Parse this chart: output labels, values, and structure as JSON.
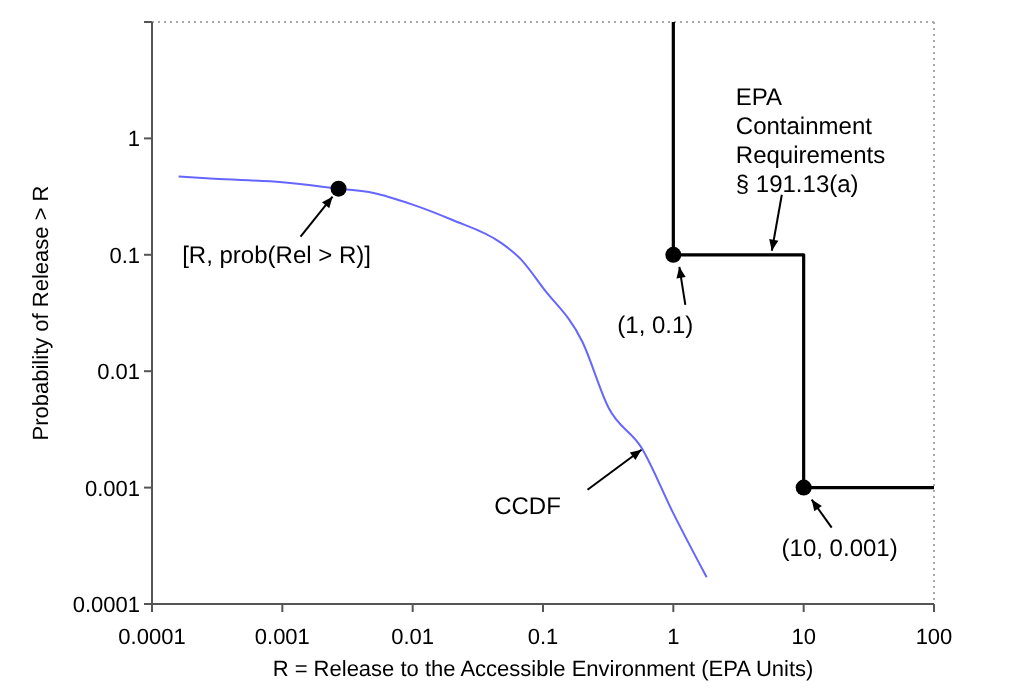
{
  "chart_data": {
    "type": "line",
    "xlabel": "R = Release to the Accessible Environment (EPA Units)",
    "ylabel": "Probability of Release > R",
    "log": "xy",
    "xlim": [
      0.0001,
      100
    ],
    "xticks": [
      0.0001,
      0.001,
      0.01,
      0.1,
      1,
      10,
      100
    ],
    "ylim": [
      0.0001,
      10
    ],
    "yticks": [
      0.0001,
      0.001,
      0.01,
      0.1,
      1,
      {
        "value": 10,
        "label": null
      }
    ],
    "series": [
      {
        "type": "line",
        "color": "#6666ff",
        "x": [
          0.00016,
          0.0003,
          0.001,
          0.0027,
          0.005,
          0.01,
          0.02,
          0.048,
          0.068,
          0.1,
          0.2,
          0.32,
          0.57,
          1,
          1.8
        ],
        "values": [
          0.47,
          0.45,
          0.42,
          0.37,
          0.34,
          0.27,
          0.2,
          0.126,
          0.091,
          0.052,
          0.018,
          0.0048,
          0.0022,
          0.0006,
          0.00017
        ]
      },
      {
        "type": "line",
        "color": "#000000",
        "x": [
          1,
          1,
          10,
          10,
          100
        ],
        "values": [
          10,
          0.1,
          0.1,
          0.001,
          0.001
        ]
      },
      {
        "type": "scatter",
        "color": "#000000",
        "marker": "circle",
        "x": [
          0.0027,
          1,
          10
        ],
        "values": [
          0.37,
          0.1,
          0.001
        ]
      }
    ],
    "annotations": [
      {
        "text": "[R, prob(Rel > R)]",
        "x": 0.0027,
        "y": 0.37
      },
      {
        "text": "(1, 0.1)",
        "x": 1,
        "y": 0.1
      },
      {
        "text": "(10, 0.001)",
        "x": 10,
        "y": 0.001
      },
      {
        "text": "CCDF",
        "x": 0.57,
        "y": 0.0022
      },
      {
        "text": "EPA\nContainment\nRequirements\n§ 191.13(a)",
        "x": 5.5,
        "y": 0.1
      }
    ]
  }
}
